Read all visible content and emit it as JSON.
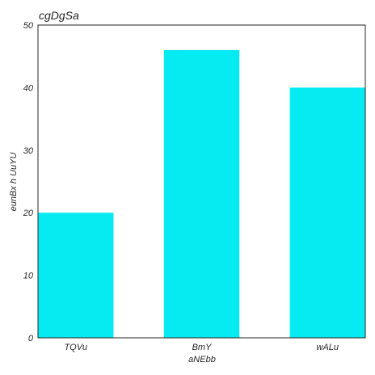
{
  "chart_data": {
    "type": "bar",
    "title": "cgDgSa",
    "xlabel": "aNEbb",
    "ylabel": "eunBx h UuYU",
    "categories": [
      "TQVu",
      "BmY",
      "wALu"
    ],
    "values": [
      20,
      46,
      40
    ],
    "ylim": [
      0,
      50
    ],
    "yticks": [
      0,
      10,
      20,
      30,
      40,
      50
    ],
    "grid": false,
    "bar_color": "#06ebf2",
    "axis_color": "#262626"
  }
}
